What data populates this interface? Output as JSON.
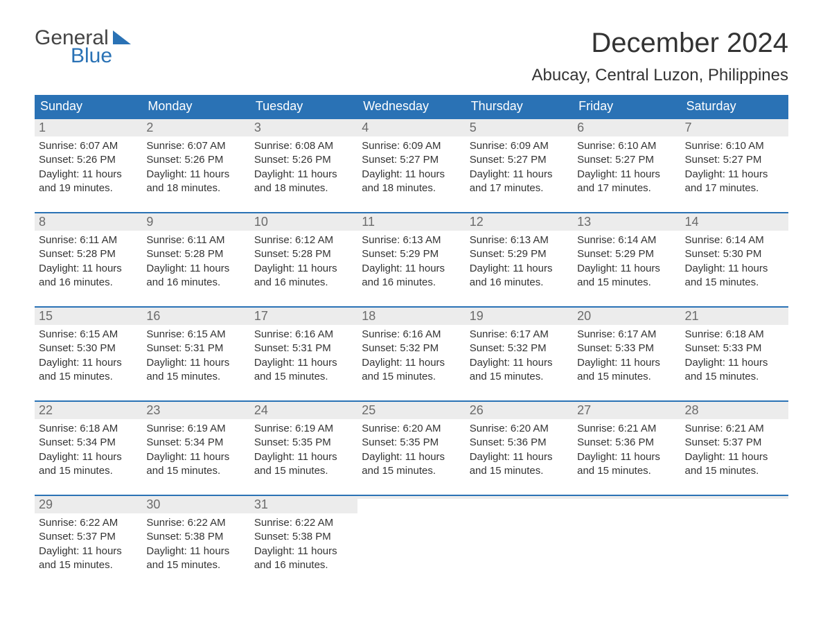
{
  "logo": {
    "word1": "General",
    "word2": "Blue"
  },
  "title": "December 2024",
  "location": "Abucay, Central Luzon, Philippines",
  "colors": {
    "header_bg": "#2a72b5",
    "header_text": "#ffffff",
    "daynum_bg": "#ececec",
    "daynum_text": "#6b6b6b",
    "body_text": "#333333",
    "rule": "#2a72b5",
    "background": "#ffffff"
  },
  "typography": {
    "title_fontsize": 40,
    "location_fontsize": 24,
    "dow_fontsize": 18,
    "daynum_fontsize": 18,
    "body_fontsize": 15
  },
  "calendar": {
    "type": "table",
    "columns": [
      "Sunday",
      "Monday",
      "Tuesday",
      "Wednesday",
      "Thursday",
      "Friday",
      "Saturday"
    ],
    "weeks": [
      [
        {
          "n": "1",
          "sunrise": "Sunrise: 6:07 AM",
          "sunset": "Sunset: 5:26 PM",
          "d1": "Daylight: 11 hours",
          "d2": "and 19 minutes."
        },
        {
          "n": "2",
          "sunrise": "Sunrise: 6:07 AM",
          "sunset": "Sunset: 5:26 PM",
          "d1": "Daylight: 11 hours",
          "d2": "and 18 minutes."
        },
        {
          "n": "3",
          "sunrise": "Sunrise: 6:08 AM",
          "sunset": "Sunset: 5:26 PM",
          "d1": "Daylight: 11 hours",
          "d2": "and 18 minutes."
        },
        {
          "n": "4",
          "sunrise": "Sunrise: 6:09 AM",
          "sunset": "Sunset: 5:27 PM",
          "d1": "Daylight: 11 hours",
          "d2": "and 18 minutes."
        },
        {
          "n": "5",
          "sunrise": "Sunrise: 6:09 AM",
          "sunset": "Sunset: 5:27 PM",
          "d1": "Daylight: 11 hours",
          "d2": "and 17 minutes."
        },
        {
          "n": "6",
          "sunrise": "Sunrise: 6:10 AM",
          "sunset": "Sunset: 5:27 PM",
          "d1": "Daylight: 11 hours",
          "d2": "and 17 minutes."
        },
        {
          "n": "7",
          "sunrise": "Sunrise: 6:10 AM",
          "sunset": "Sunset: 5:27 PM",
          "d1": "Daylight: 11 hours",
          "d2": "and 17 minutes."
        }
      ],
      [
        {
          "n": "8",
          "sunrise": "Sunrise: 6:11 AM",
          "sunset": "Sunset: 5:28 PM",
          "d1": "Daylight: 11 hours",
          "d2": "and 16 minutes."
        },
        {
          "n": "9",
          "sunrise": "Sunrise: 6:11 AM",
          "sunset": "Sunset: 5:28 PM",
          "d1": "Daylight: 11 hours",
          "d2": "and 16 minutes."
        },
        {
          "n": "10",
          "sunrise": "Sunrise: 6:12 AM",
          "sunset": "Sunset: 5:28 PM",
          "d1": "Daylight: 11 hours",
          "d2": "and 16 minutes."
        },
        {
          "n": "11",
          "sunrise": "Sunrise: 6:13 AM",
          "sunset": "Sunset: 5:29 PM",
          "d1": "Daylight: 11 hours",
          "d2": "and 16 minutes."
        },
        {
          "n": "12",
          "sunrise": "Sunrise: 6:13 AM",
          "sunset": "Sunset: 5:29 PM",
          "d1": "Daylight: 11 hours",
          "d2": "and 16 minutes."
        },
        {
          "n": "13",
          "sunrise": "Sunrise: 6:14 AM",
          "sunset": "Sunset: 5:29 PM",
          "d1": "Daylight: 11 hours",
          "d2": "and 15 minutes."
        },
        {
          "n": "14",
          "sunrise": "Sunrise: 6:14 AM",
          "sunset": "Sunset: 5:30 PM",
          "d1": "Daylight: 11 hours",
          "d2": "and 15 minutes."
        }
      ],
      [
        {
          "n": "15",
          "sunrise": "Sunrise: 6:15 AM",
          "sunset": "Sunset: 5:30 PM",
          "d1": "Daylight: 11 hours",
          "d2": "and 15 minutes."
        },
        {
          "n": "16",
          "sunrise": "Sunrise: 6:15 AM",
          "sunset": "Sunset: 5:31 PM",
          "d1": "Daylight: 11 hours",
          "d2": "and 15 minutes."
        },
        {
          "n": "17",
          "sunrise": "Sunrise: 6:16 AM",
          "sunset": "Sunset: 5:31 PM",
          "d1": "Daylight: 11 hours",
          "d2": "and 15 minutes."
        },
        {
          "n": "18",
          "sunrise": "Sunrise: 6:16 AM",
          "sunset": "Sunset: 5:32 PM",
          "d1": "Daylight: 11 hours",
          "d2": "and 15 minutes."
        },
        {
          "n": "19",
          "sunrise": "Sunrise: 6:17 AM",
          "sunset": "Sunset: 5:32 PM",
          "d1": "Daylight: 11 hours",
          "d2": "and 15 minutes."
        },
        {
          "n": "20",
          "sunrise": "Sunrise: 6:17 AM",
          "sunset": "Sunset: 5:33 PM",
          "d1": "Daylight: 11 hours",
          "d2": "and 15 minutes."
        },
        {
          "n": "21",
          "sunrise": "Sunrise: 6:18 AM",
          "sunset": "Sunset: 5:33 PM",
          "d1": "Daylight: 11 hours",
          "d2": "and 15 minutes."
        }
      ],
      [
        {
          "n": "22",
          "sunrise": "Sunrise: 6:18 AM",
          "sunset": "Sunset: 5:34 PM",
          "d1": "Daylight: 11 hours",
          "d2": "and 15 minutes."
        },
        {
          "n": "23",
          "sunrise": "Sunrise: 6:19 AM",
          "sunset": "Sunset: 5:34 PM",
          "d1": "Daylight: 11 hours",
          "d2": "and 15 minutes."
        },
        {
          "n": "24",
          "sunrise": "Sunrise: 6:19 AM",
          "sunset": "Sunset: 5:35 PM",
          "d1": "Daylight: 11 hours",
          "d2": "and 15 minutes."
        },
        {
          "n": "25",
          "sunrise": "Sunrise: 6:20 AM",
          "sunset": "Sunset: 5:35 PM",
          "d1": "Daylight: 11 hours",
          "d2": "and 15 minutes."
        },
        {
          "n": "26",
          "sunrise": "Sunrise: 6:20 AM",
          "sunset": "Sunset: 5:36 PM",
          "d1": "Daylight: 11 hours",
          "d2": "and 15 minutes."
        },
        {
          "n": "27",
          "sunrise": "Sunrise: 6:21 AM",
          "sunset": "Sunset: 5:36 PM",
          "d1": "Daylight: 11 hours",
          "d2": "and 15 minutes."
        },
        {
          "n": "28",
          "sunrise": "Sunrise: 6:21 AM",
          "sunset": "Sunset: 5:37 PM",
          "d1": "Daylight: 11 hours",
          "d2": "and 15 minutes."
        }
      ],
      [
        {
          "n": "29",
          "sunrise": "Sunrise: 6:22 AM",
          "sunset": "Sunset: 5:37 PM",
          "d1": "Daylight: 11 hours",
          "d2": "and 15 minutes."
        },
        {
          "n": "30",
          "sunrise": "Sunrise: 6:22 AM",
          "sunset": "Sunset: 5:38 PM",
          "d1": "Daylight: 11 hours",
          "d2": "and 15 minutes."
        },
        {
          "n": "31",
          "sunrise": "Sunrise: 6:22 AM",
          "sunset": "Sunset: 5:38 PM",
          "d1": "Daylight: 11 hours",
          "d2": "and 16 minutes."
        },
        {
          "empty": true
        },
        {
          "empty": true
        },
        {
          "empty": true
        },
        {
          "empty": true
        }
      ]
    ]
  }
}
